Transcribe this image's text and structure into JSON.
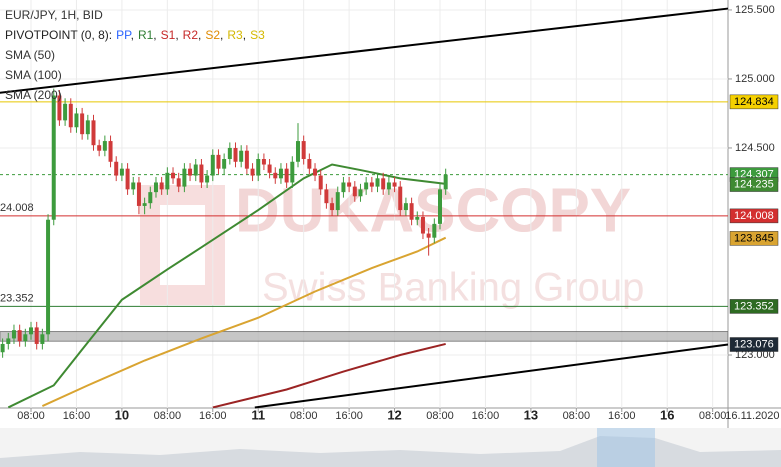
{
  "chart_data": {
    "type": "candlestick",
    "title": "EUR/JPY, 1H, BID",
    "indicator_label": "PIVOTPOINT (0, 8):",
    "indicator_parts": [
      {
        "name": "PP",
        "color": "#2962ff"
      },
      {
        "name": "R1",
        "color": "#2e7d32"
      },
      {
        "name": "S1",
        "color": "#c62828"
      },
      {
        "name": "R2",
        "color": "#c62828"
      },
      {
        "name": "S2",
        "color": "#e08a00"
      },
      {
        "name": "R3",
        "color": "#d4b800"
      },
      {
        "name": "S3",
        "color": "#d4b800"
      }
    ],
    "watermark": "DUKASCOPY",
    "watermark_sub": "Swiss Banking Group",
    "up_color": "#3d9b3d",
    "down_color": "#d03a3a",
    "x": [
      -5,
      -4,
      -3,
      -2,
      -1,
      0,
      1,
      2,
      3,
      4,
      5,
      6,
      7,
      8,
      9,
      10,
      11,
      12,
      13,
      14,
      15,
      16,
      17,
      18,
      19,
      20,
      21,
      22,
      23,
      24,
      25,
      26,
      27,
      28,
      29,
      30,
      31,
      32,
      33,
      34,
      35,
      36,
      37,
      38,
      39,
      40,
      41,
      42,
      43,
      44,
      45,
      46,
      47,
      48,
      49,
      50,
      51,
      52,
      53,
      54,
      55,
      56,
      57,
      58,
      59,
      60,
      61,
      62,
      63,
      64,
      65,
      66,
      67,
      68,
      69,
      70,
      71,
      72,
      73
    ],
    "open": [
      123.02,
      123.08,
      123.12,
      123.18,
      123.1,
      123.15,
      123.2,
      123.08,
      123.15,
      123.98,
      124.88,
      124.7,
      124.82,
      124.65,
      124.75,
      124.6,
      124.7,
      124.52,
      124.48,
      124.55,
      124.4,
      124.3,
      124.35,
      124.2,
      124.25,
      124.08,
      124.1,
      124.18,
      124.25,
      124.2,
      124.32,
      124.28,
      124.22,
      124.35,
      124.3,
      124.38,
      124.25,
      124.3,
      124.45,
      124.35,
      124.42,
      124.5,
      124.4,
      124.48,
      124.35,
      124.3,
      124.42,
      124.38,
      124.32,
      124.28,
      124.35,
      124.25,
      124.4,
      124.55,
      124.42,
      124.35,
      124.3,
      124.2,
      124.1,
      124.05,
      124.18,
      124.25,
      124.22,
      124.15,
      124.2,
      124.25,
      124.22,
      124.28,
      124.2,
      124.25,
      124.22,
      124.05,
      124.1,
      123.98,
      124.0,
      123.88,
      123.85,
      123.95,
      124.2
    ],
    "high": [
      123.12,
      123.16,
      123.22,
      123.22,
      123.19,
      123.24,
      123.24,
      123.19,
      124.02,
      124.93,
      124.92,
      124.86,
      124.86,
      124.79,
      124.79,
      124.74,
      124.74,
      124.56,
      124.59,
      124.59,
      124.44,
      124.39,
      124.39,
      124.29,
      124.29,
      124.14,
      124.22,
      124.29,
      124.29,
      124.36,
      124.36,
      124.32,
      124.39,
      124.39,
      124.42,
      124.42,
      124.34,
      124.49,
      124.49,
      124.46,
      124.54,
      124.54,
      124.52,
      124.52,
      124.39,
      124.46,
      124.46,
      124.42,
      124.36,
      124.39,
      124.39,
      124.44,
      124.68,
      124.59,
      124.46,
      124.39,
      124.34,
      124.24,
      124.14,
      124.22,
      124.29,
      124.29,
      124.26,
      124.24,
      124.29,
      124.29,
      124.32,
      124.32,
      124.29,
      124.29,
      124.26,
      124.14,
      124.14,
      124.04,
      124.04,
      123.92,
      123.99,
      124.24,
      124.35
    ],
    "low": [
      122.98,
      123.04,
      123.08,
      123.06,
      123.06,
      123.11,
      123.04,
      123.04,
      123.1,
      123.94,
      124.66,
      124.66,
      124.61,
      124.61,
      124.56,
      124.56,
      124.48,
      124.44,
      124.44,
      124.36,
      124.26,
      124.26,
      124.16,
      124.16,
      124.02,
      124.02,
      124.06,
      124.14,
      124.16,
      124.16,
      124.24,
      124.18,
      124.18,
      124.26,
      124.26,
      124.21,
      124.21,
      124.26,
      124.31,
      124.31,
      124.38,
      124.36,
      124.36,
      124.31,
      124.26,
      124.26,
      124.34,
      124.28,
      124.24,
      124.24,
      124.21,
      124.21,
      124.36,
      124.38,
      124.31,
      124.26,
      124.16,
      124.06,
      124.01,
      124.01,
      124.14,
      124.18,
      124.11,
      124.11,
      124.16,
      124.18,
      124.18,
      124.16,
      124.16,
      124.18,
      124.01,
      124.01,
      123.94,
      123.94,
      123.84,
      123.72,
      123.81,
      123.91,
      124.16
    ],
    "close": [
      123.08,
      123.12,
      123.18,
      123.1,
      123.15,
      123.2,
      123.08,
      123.15,
      123.98,
      124.88,
      124.7,
      124.82,
      124.65,
      124.75,
      124.6,
      124.7,
      124.52,
      124.48,
      124.55,
      124.4,
      124.3,
      124.35,
      124.2,
      124.25,
      124.08,
      124.1,
      124.18,
      124.25,
      124.2,
      124.32,
      124.28,
      124.22,
      124.35,
      124.3,
      124.38,
      124.25,
      124.3,
      124.45,
      124.35,
      124.42,
      124.5,
      124.4,
      124.48,
      124.35,
      124.3,
      124.42,
      124.38,
      124.32,
      124.28,
      124.35,
      124.25,
      124.4,
      124.55,
      124.42,
      124.35,
      124.3,
      124.2,
      124.1,
      124.05,
      124.18,
      124.25,
      124.22,
      124.15,
      124.2,
      124.25,
      124.22,
      124.28,
      124.2,
      124.25,
      124.22,
      124.05,
      124.1,
      123.98,
      124.0,
      123.88,
      123.85,
      123.95,
      124.2,
      124.307
    ],
    "series": [
      {
        "name": "SMA (50)",
        "color": "#3f8a32",
        "x": [
          -4,
          4,
          9,
          16,
          24,
          30,
          40,
          48,
          53,
          58,
          65,
          73
        ],
        "values": [
          122.62,
          122.78,
          123.04,
          123.4,
          123.62,
          123.78,
          124.05,
          124.28,
          124.38,
          124.34,
          124.28,
          124.24
        ]
      },
      {
        "name": "SMA (100)",
        "color": "#d9a431",
        "x": [
          2,
          10,
          20,
          30,
          40,
          50,
          60,
          68,
          73
        ],
        "values": [
          122.63,
          122.78,
          122.96,
          123.12,
          123.27,
          123.46,
          123.63,
          123.75,
          123.85
        ]
      },
      {
        "name": "SMA (200)",
        "color": "#9b2424",
        "x": [
          32,
          45,
          55,
          65,
          73
        ],
        "values": [
          122.62,
          122.75,
          122.88,
          123.0,
          123.08
        ]
      }
    ],
    "trendlines": [
      {
        "x": [
          -5.5,
          122.7
        ],
        "values": [
          124.9,
          125.51
        ]
      },
      {
        "x": [
          39.4,
          122.7
        ],
        "values": [
          122.62,
          123.076
        ]
      }
    ],
    "hlines": [
      {
        "value": 124.834,
        "color": "#e8c800"
      },
      {
        "value": 124.307,
        "color": "#3d9b3d",
        "dashed": true
      },
      {
        "value": 124.008,
        "color": "#d32f2f",
        "left_label": "24.008"
      },
      {
        "value": 123.352,
        "color": "#2e7d32",
        "left_label": "23.352"
      }
    ],
    "band": {
      "values": [
        123.1,
        123.17
      ],
      "color": "#b8b8b8"
    },
    "price_labels": [
      {
        "value": 124.834,
        "label": "124.834",
        "color": "#f5d000",
        "text_color": "#000000"
      },
      {
        "value": 124.307,
        "label": "124.307",
        "color": "#3d9b3d",
        "text_color": "#ffffff"
      },
      {
        "value": 124.235,
        "label": "124.235",
        "color": "#3f8a32",
        "text_color": "#ffffff"
      },
      {
        "value": 124.008,
        "label": "124.008",
        "color": "#d32f2f",
        "text_color": "#ffffff"
      },
      {
        "value": 123.845,
        "label": "123.845",
        "color": "#d9a431",
        "text_color": "#000000"
      },
      {
        "value": 123.352,
        "label": "123.352",
        "color": "#2e6b22",
        "text_color": "#ffffff"
      },
      {
        "value": 123.076,
        "label": "123.076",
        "color": "#1e2a36",
        "text_color": "#ffffff"
      }
    ],
    "xlim": [
      -5.46,
      122.7
    ],
    "ylim": [
      122.616,
      125.572
    ],
    "xticks": [
      {
        "value": 0,
        "label": "08:00"
      },
      {
        "value": 8,
        "label": "16:00"
      },
      {
        "value": 16,
        "label": "10"
      },
      {
        "value": 24,
        "label": "08:00"
      },
      {
        "value": 32,
        "label": "16:00"
      },
      {
        "value": 40,
        "label": "11"
      },
      {
        "value": 48,
        "label": "08:00"
      },
      {
        "value": 56,
        "label": "16:00"
      },
      {
        "value": 64,
        "label": "12"
      },
      {
        "value": 72,
        "label": "08:00"
      },
      {
        "value": 80,
        "label": "16:00"
      },
      {
        "value": 88,
        "label": "13"
      },
      {
        "value": 96,
        "label": "08:00"
      },
      {
        "value": 104,
        "label": "16:00"
      },
      {
        "value": 112,
        "label": "16"
      },
      {
        "value": 120,
        "label": "08:00"
      }
    ],
    "cursor_date": {
      "value": 127,
      "label": "16.11.2020"
    },
    "yticks": [
      {
        "value": 123,
        "label": "123.000"
      },
      {
        "value": 124.5,
        "label": "124.500"
      },
      {
        "value": 125,
        "label": "125.000"
      },
      {
        "value": 125.5,
        "label": "125.500"
      }
    ],
    "grid": true
  }
}
